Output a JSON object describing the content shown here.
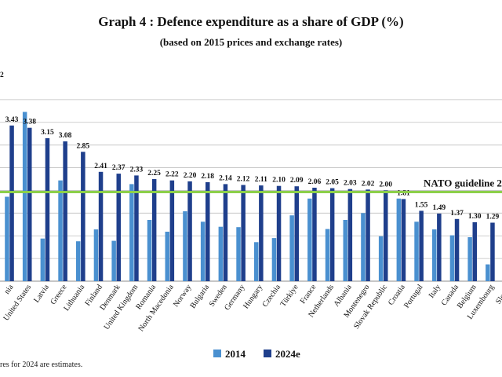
{
  "page": {
    "title": "Graph 4 : Defence expenditure as a share of GDP (%)",
    "subtitle": "(based on 2015 prices and exchange rates)",
    "footnote": "res for 2024 are estimates."
  },
  "colors": {
    "s2014": "#4a90d0",
    "s2024": "#1f3f8c",
    "guideline": "#8ccf4a",
    "grid": "#bfbfbf"
  },
  "chart_data": {
    "type": "bar",
    "title": "Graph 4 : Defence expenditure as a share of GDP (%)",
    "subtitle": "(based on 2015 prices and exchange rates)",
    "ylim": [
      0,
      4.5
    ],
    "grid": true,
    "legend": "bottom",
    "categories": [
      "nia",
      "United States",
      "Latvia",
      "Greece",
      "Lithuania",
      "Finland",
      "Denmark",
      "United Kingdom",
      "Romania",
      "North Macedonia",
      "Norway",
      "Bulgaria",
      "Sweden",
      "Germany",
      "Hungary",
      "Czechia",
      "Türkiye",
      "France",
      "Netherlands",
      "Albania",
      "Montenegro",
      "Slovak Republic",
      "Croatia",
      "Portugal",
      "Italy",
      "Canada",
      "Belgium",
      "Luxembourg",
      "Sloven"
    ],
    "series": [
      {
        "name": "2014",
        "values": [
          1.86,
          3.73,
          0.94,
          2.22,
          0.88,
          1.14,
          0.89,
          2.14,
          1.35,
          1.09,
          1.54,
          1.31,
          1.2,
          1.19,
          0.86,
          0.95,
          1.45,
          1.82,
          1.15,
          1.35,
          1.5,
          0.99,
          1.82,
          1.31,
          1.14,
          1.01,
          0.97,
          0.37,
          0.0
        ]
      },
      {
        "name": "2024e",
        "values": [
          3.43,
          3.38,
          3.15,
          3.08,
          2.85,
          2.41,
          2.37,
          2.33,
          2.25,
          2.22,
          2.2,
          2.18,
          2.14,
          2.12,
          2.11,
          2.1,
          2.09,
          2.06,
          2.05,
          2.03,
          2.02,
          2.0,
          1.81,
          1.55,
          1.49,
          1.37,
          1.3,
          1.29,
          0.0
        ]
      }
    ],
    "data_labels": [
      "3.43",
      "3.38",
      "3.15",
      "3.08",
      "2.85",
      "2.41",
      "2.37",
      "2.33",
      "2.25",
      "2.22",
      "2.20",
      "2.18",
      "2.14",
      "2.12",
      "2.11",
      "2.10",
      "2.09",
      "2.06",
      "2.05",
      "2.03",
      "2.02",
      "2.00",
      "1.81",
      "1.55",
      "1.49",
      "1.37",
      "1.30",
      "1.29",
      ""
    ],
    "reference_line": {
      "value": 2.0,
      "label": "NATO guideline 2"
    },
    "y_axis_fragment": "2"
  }
}
